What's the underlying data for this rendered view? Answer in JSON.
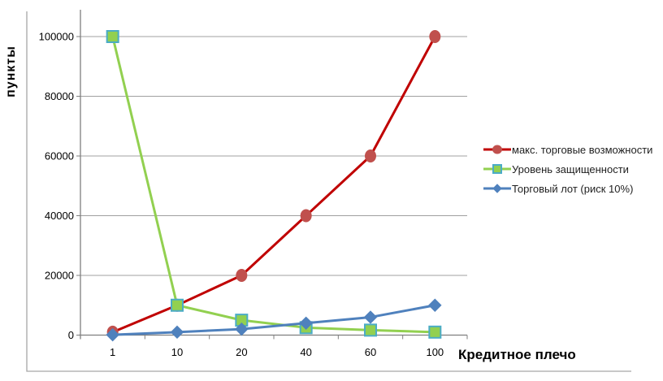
{
  "colors": {
    "background": "#ffffff",
    "gridline": "#A0A0A0",
    "axis_line": "#7F7F7F",
    "chart_border": "#A6A6A6",
    "tick_text": "#000000",
    "legend_text": "#1f1f1f"
  },
  "chart_data": {
    "type": "line",
    "title": "",
    "xlabel": "Кредитное плечо",
    "ylabel": "пункты",
    "categories": [
      1,
      10,
      20,
      40,
      60,
      100
    ],
    "x_tick_labels": [
      "1",
      "10",
      "20",
      "40",
      "60",
      "100"
    ],
    "y_ticks": [
      0,
      20000,
      40000,
      60000,
      80000,
      100000
    ],
    "y_tick_labels": [
      "0",
      "20000",
      "40000",
      "60000",
      "80000",
      "100000"
    ],
    "ylim": [
      0,
      100000
    ],
    "grid": "horizontal",
    "legend_position": "right",
    "series": [
      {
        "name": "макс. торговые возможности",
        "marker": "circle",
        "line_color": "#C00000",
        "marker_fill": "#C0504D",
        "marker_stroke": "#C0504D",
        "values": [
          1000,
          10000,
          20000,
          40000,
          60000,
          100000
        ]
      },
      {
        "name": "Уровень защищенности",
        "marker": "square",
        "line_color": "#92D050",
        "marker_fill": "#92D050",
        "marker_stroke": "#4BACC6",
        "values": [
          100000,
          10000,
          5000,
          2500,
          1667,
          1000
        ]
      },
      {
        "name": "Торговый лот (риск 10%)",
        "marker": "diamond",
        "line_color": "#4F81BD",
        "marker_fill": "#4F81BD",
        "marker_stroke": "#4F81BD",
        "values": [
          100,
          1000,
          2000,
          4000,
          6000,
          10000
        ]
      }
    ]
  }
}
